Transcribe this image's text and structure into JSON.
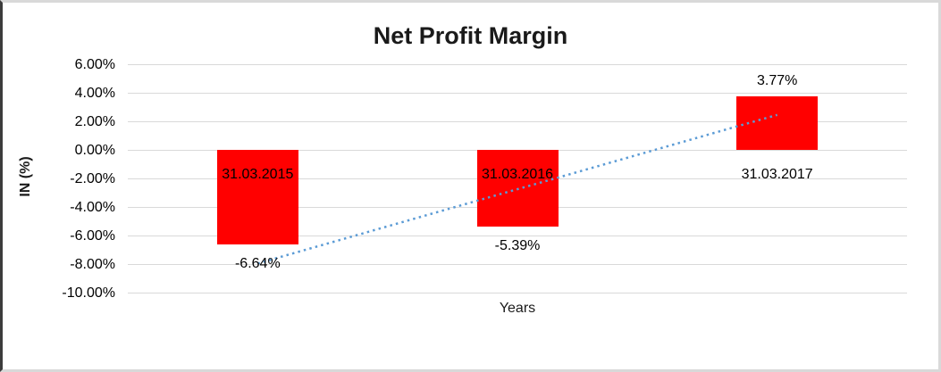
{
  "chart_data": {
    "type": "bar",
    "title": "Net Profit Margin",
    "categories": [
      "31.03.2015",
      "31.03.2016",
      "31.03.2017"
    ],
    "values": [
      -6.64,
      -5.39,
      3.77
    ],
    "data_labels": [
      "-6.64%",
      "-5.39%",
      "3.77%"
    ],
    "bar_color": "#FF0000",
    "xlabel": "Years",
    "ylabel": "IN (%)",
    "ylim": [
      -10,
      6
    ],
    "ytick_labels": [
      "6.00%",
      "4.00%",
      "2.00%",
      "0.00%",
      "-2.00%",
      "-4.00%",
      "-6.00%",
      "-8.00%",
      "-10.00%"
    ],
    "ytick_values": [
      6,
      4,
      2,
      0,
      -2,
      -4,
      -6,
      -8,
      -10
    ],
    "grid": true,
    "gridline_color": "#d9d9d9",
    "legend": "none",
    "trendline": {
      "kind": "linear",
      "line_style": "dotted",
      "color": "#5B9BD5",
      "start_value": -7.96,
      "end_value": 2.45
    }
  }
}
